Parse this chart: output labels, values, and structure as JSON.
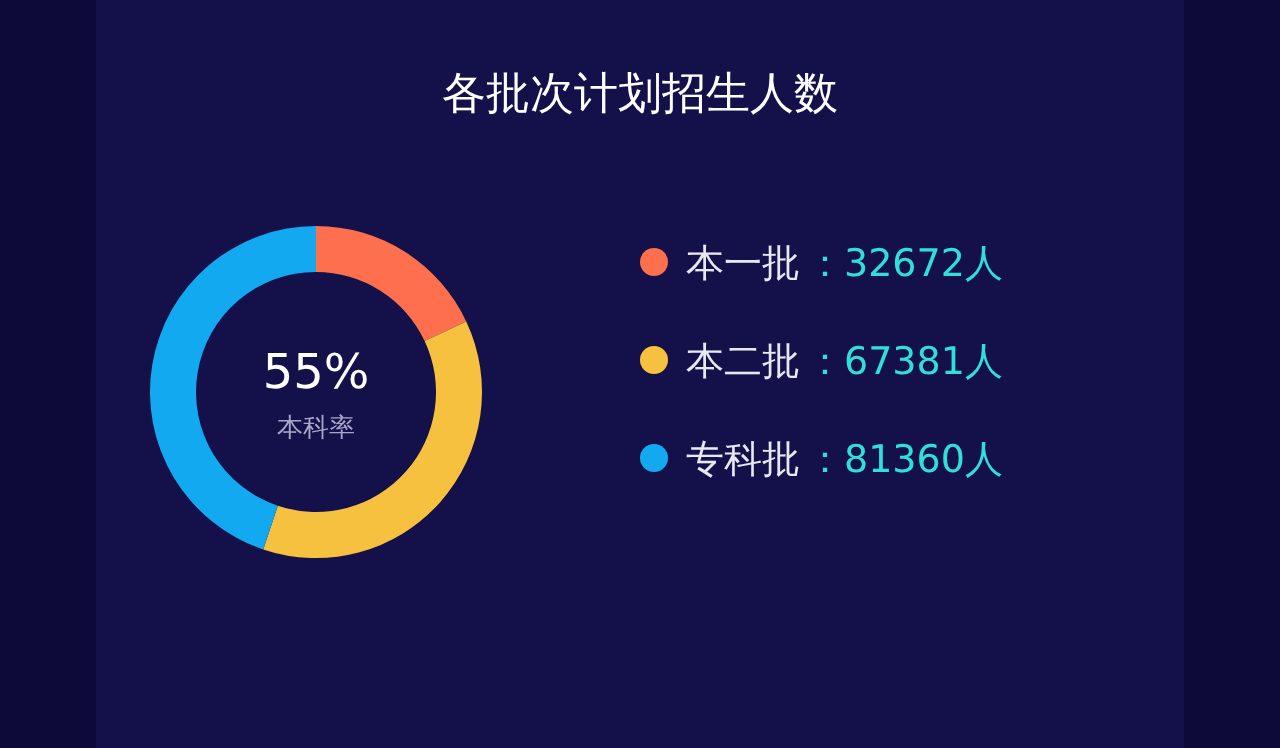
{
  "chart_data": {
    "type": "donut",
    "title": "各批次计划招生人数",
    "categories": [
      "本一批",
      "本二批",
      "专科批"
    ],
    "values": [
      32672,
      67381,
      81360
    ],
    "value_labels": [
      "：32672人",
      "：67381人",
      "：81360人"
    ],
    "colors": [
      "#fd6f4d",
      "#f5c13f",
      "#12a9f0"
    ],
    "annotations": [
      "55%",
      "本科率"
    ],
    "legend": "right"
  }
}
